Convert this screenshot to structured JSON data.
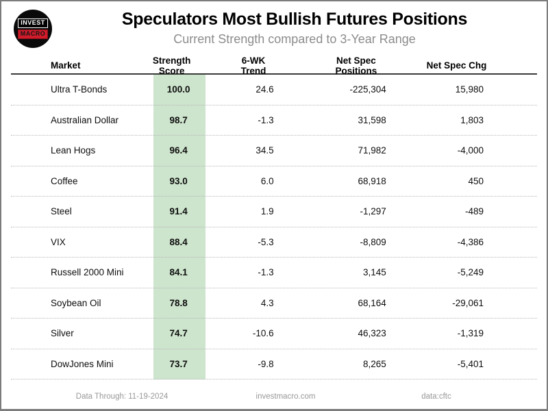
{
  "header": {
    "title": "Speculators Most Bullish Futures Positions",
    "subtitle": "Current Strength compared to 3-Year Range"
  },
  "logo": {
    "line1": "INVEST",
    "line2": "MACRO"
  },
  "chart_data": {
    "type": "table",
    "title": "Speculators Most Bullish Futures Positions",
    "subtitle": "Current Strength compared to 3-Year Range",
    "columns": [
      "Market",
      "Strength Score",
      "6-WK Trend",
      "Net Spec Positions",
      "Net Spec Chg"
    ],
    "rows": [
      [
        "Ultra T-Bonds",
        "100.0",
        "24.6",
        "-225,304",
        "15,980"
      ],
      [
        "Australian Dollar",
        "98.7",
        "-1.3",
        "31,598",
        "1,803"
      ],
      [
        "Lean Hogs",
        "96.4",
        "34.5",
        "71,982",
        "-4,000"
      ],
      [
        "Coffee",
        "93.0",
        "6.0",
        "68,918",
        "450"
      ],
      [
        "Steel",
        "91.4",
        "1.9",
        "-1,297",
        "-489"
      ],
      [
        "VIX",
        "88.4",
        "-5.3",
        "-8,809",
        "-4,386"
      ],
      [
        "Russell 2000 Mini",
        "84.1",
        "-1.3",
        "3,145",
        "-5,249"
      ],
      [
        "Soybean Oil",
        "78.8",
        "4.3",
        "68,164",
        "-29,061"
      ],
      [
        "Silver",
        "74.7",
        "-10.6",
        "46,323",
        "-1,319"
      ],
      [
        "DowJones Mini",
        "73.7",
        "-9.8",
        "8,265",
        "-5,401"
      ]
    ],
    "layout": {
      "score_column_highlighted": true,
      "row_separator": "dotted",
      "numeric_alignment": "right"
    }
  },
  "footer": {
    "data_through": "Data Through: 11-19-2024",
    "website": "investmacro.com",
    "source": "data:cftc"
  },
  "colors": {
    "score_highlight": "#cde4cd",
    "subtitle_gray": "#8c8c8c",
    "footer_gray": "#989898",
    "logo_red": "#cf1b2a",
    "page_border": "#7c7c7c"
  }
}
